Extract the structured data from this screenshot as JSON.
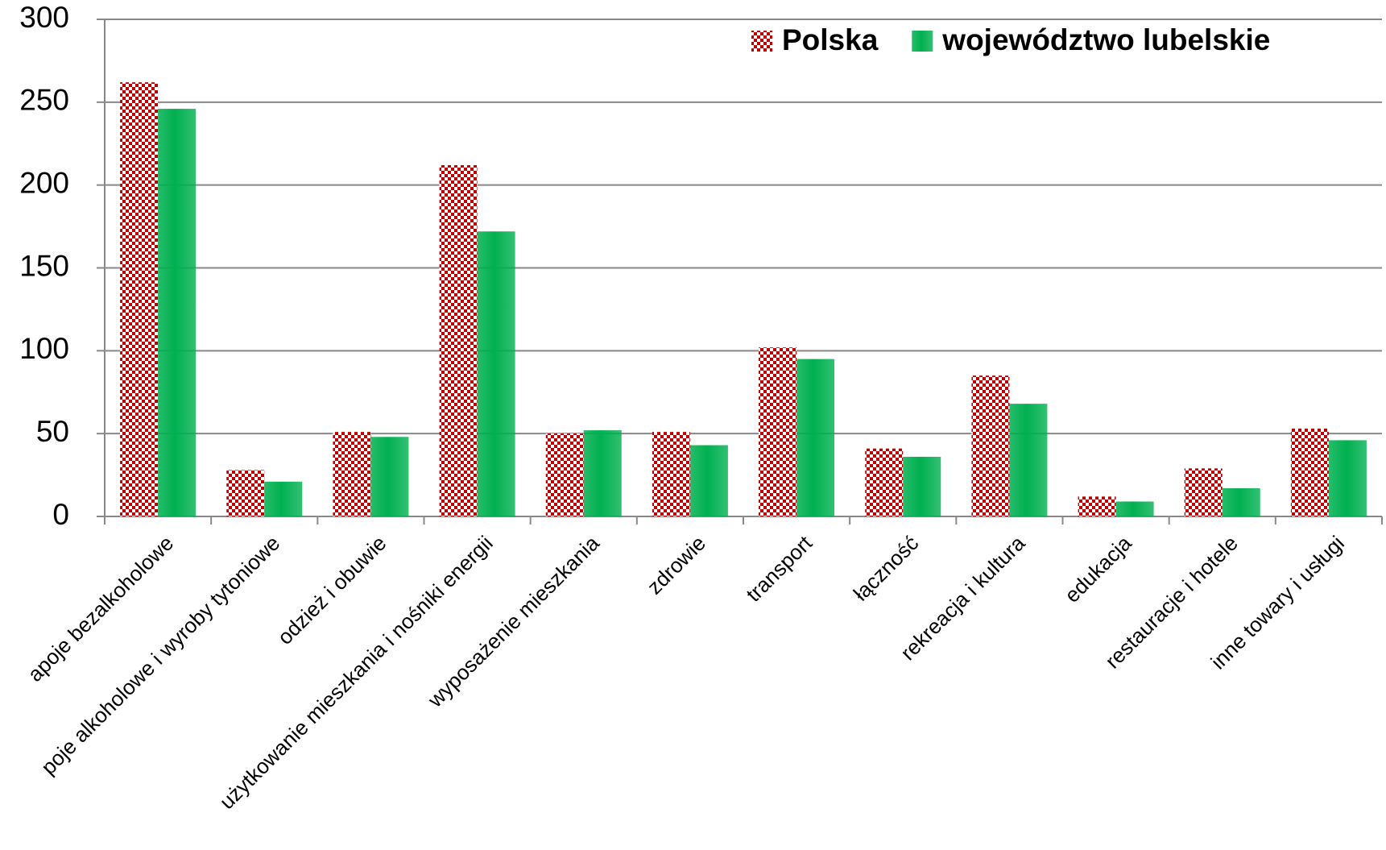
{
  "chart_data": {
    "type": "bar",
    "categories": [
      "apoje bezalkoholowe",
      "poje alkoholowe i wyroby tytoniowe",
      "odzież i obuwie",
      "użytkowanie mieszkania i nośniki energii",
      "wyposażenie mieszkania",
      "zdrowie",
      "transport",
      "łączność",
      "rekreacja i kultura",
      "edukacja",
      "restauracje i hotele",
      "inne towary i usługi"
    ],
    "series": [
      {
        "name": "Polska",
        "color": "#c00000",
        "values": [
          262,
          28,
          51,
          212,
          50,
          51,
          102,
          41,
          85,
          12,
          29,
          53
        ]
      },
      {
        "name": "województwo lubelskie",
        "color": "#00b050",
        "values": [
          246,
          21,
          48,
          172,
          52,
          43,
          95,
          36,
          68,
          9,
          17,
          46
        ]
      }
    ],
    "ylim": [
      0,
      300
    ],
    "yticks": [
      0,
      50,
      100,
      150,
      200,
      250,
      300
    ],
    "grid": true,
    "legend": "top-right"
  }
}
